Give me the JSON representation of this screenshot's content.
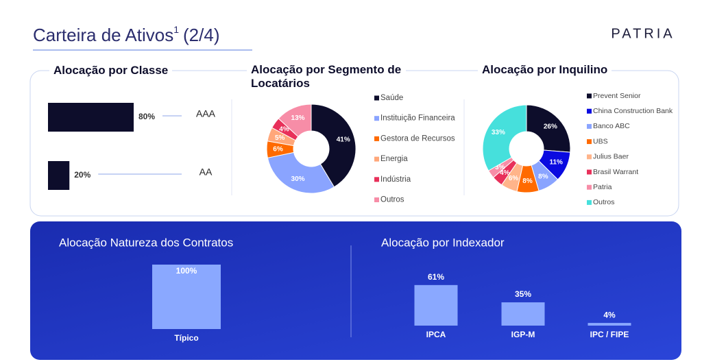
{
  "header": {
    "title": "Carteira de Ativos",
    "footnote_mark": "1",
    "page": "(2/4)",
    "logo": "PATRIA"
  },
  "chart_data": [
    {
      "type": "bar",
      "orientation": "horizontal",
      "title": "Alocação por Classe",
      "categories": [
        "AAA",
        "AA"
      ],
      "values": [
        80,
        20
      ],
      "value_labels": [
        "80%",
        "20%"
      ],
      "color": "#0d0d2b"
    },
    {
      "type": "pie",
      "donut": true,
      "title": "Alocação por Segmento de Locatários",
      "categories": [
        "Saúde",
        "Instituição Financeira",
        "Gestora de Recursos",
        "Energia",
        "Indústria",
        "Outros"
      ],
      "values": [
        41,
        30,
        6,
        5,
        4,
        13
      ],
      "value_labels": [
        "41%",
        "30%",
        "6%",
        "5%",
        "4%",
        "13%"
      ],
      "colors": [
        "#0d0d2b",
        "#8aa4ff",
        "#ff6a00",
        "#ffa77a",
        "#e8305a",
        "#f78da7"
      ]
    },
    {
      "type": "pie",
      "donut": true,
      "title": "Alocação por Inquilino",
      "categories": [
        "Prevent Senior",
        "China Construction Bank",
        "Banco ABC",
        "UBS",
        "Julius Baer",
        "Brasil Warrant",
        "Patria",
        "Outros"
      ],
      "values": [
        26,
        11,
        8,
        8,
        6,
        4,
        3,
        33
      ],
      "value_labels": [
        "26%",
        "11%",
        "8%",
        "8%",
        "6%",
        "4%",
        "3%",
        "33%"
      ],
      "colors": [
        "#0d0d2b",
        "#0a0ae0",
        "#8aa4ff",
        "#ff6a00",
        "#ffb48a",
        "#e8305a",
        "#f78da7",
        "#46e0dc"
      ]
    },
    {
      "type": "bar",
      "title": "Alocação Natureza dos Contratos",
      "categories": [
        "Típico"
      ],
      "values": [
        100
      ],
      "value_labels": [
        "100%"
      ],
      "color": "#8aa8ff"
    },
    {
      "type": "bar",
      "title": "Alocação por Indexador",
      "categories": [
        "IPCA",
        "IGP-M",
        "IPC / FIPE"
      ],
      "values": [
        61,
        35,
        4
      ],
      "value_labels": [
        "61%",
        "35%",
        "4%"
      ],
      "color": "#8aa8ff"
    }
  ]
}
